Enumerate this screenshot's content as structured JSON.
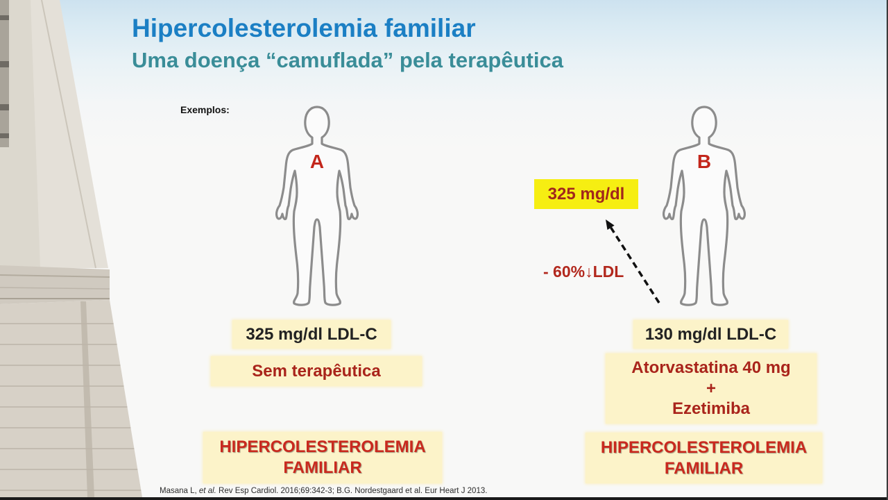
{
  "slide": {
    "title": "Hipercolesterolemia familiar",
    "subtitle": "Uma doença “camuflada” pela terapêutica",
    "examples_label": "Exemplos:"
  },
  "patient_a": {
    "label": "A",
    "icon": "human-figure-icon",
    "ldl_c": "325 mg/dl LDL-C",
    "therapy": "Sem terapêutica",
    "diagnosis": "HIPERCOLESTEROLEMIA FAMILIAR"
  },
  "patient_b": {
    "label": "B",
    "icon": "human-figure-icon",
    "untreated_ldl": "325 mg/dl",
    "reduction": "- 60%↓LDL",
    "arrow_icon": "dashed-arrow-icon",
    "ldl_c": "130 mg/dl LDL-C",
    "therapy": [
      "Atorvastatina 40 mg",
      "+",
      "Ezetimiba"
    ],
    "diagnosis": "HIPERCOLESTEROLEMIA FAMILIAR"
  },
  "citation": {
    "lead": "Masana L,",
    "italic": "et al.",
    "rest": "Rev Esp Cardiol. 2016;69:342-3; B.G. Nordestgaard et al. Eur Heart J 2013."
  },
  "colors": {
    "title": "#1b7fc4",
    "subtitle": "#3a8d98",
    "accent_red": "#c3261b",
    "highlight_yellow": "#f6ee12",
    "box_fill": "#fcf3c9",
    "figure_outline": "#8c8c8c"
  }
}
